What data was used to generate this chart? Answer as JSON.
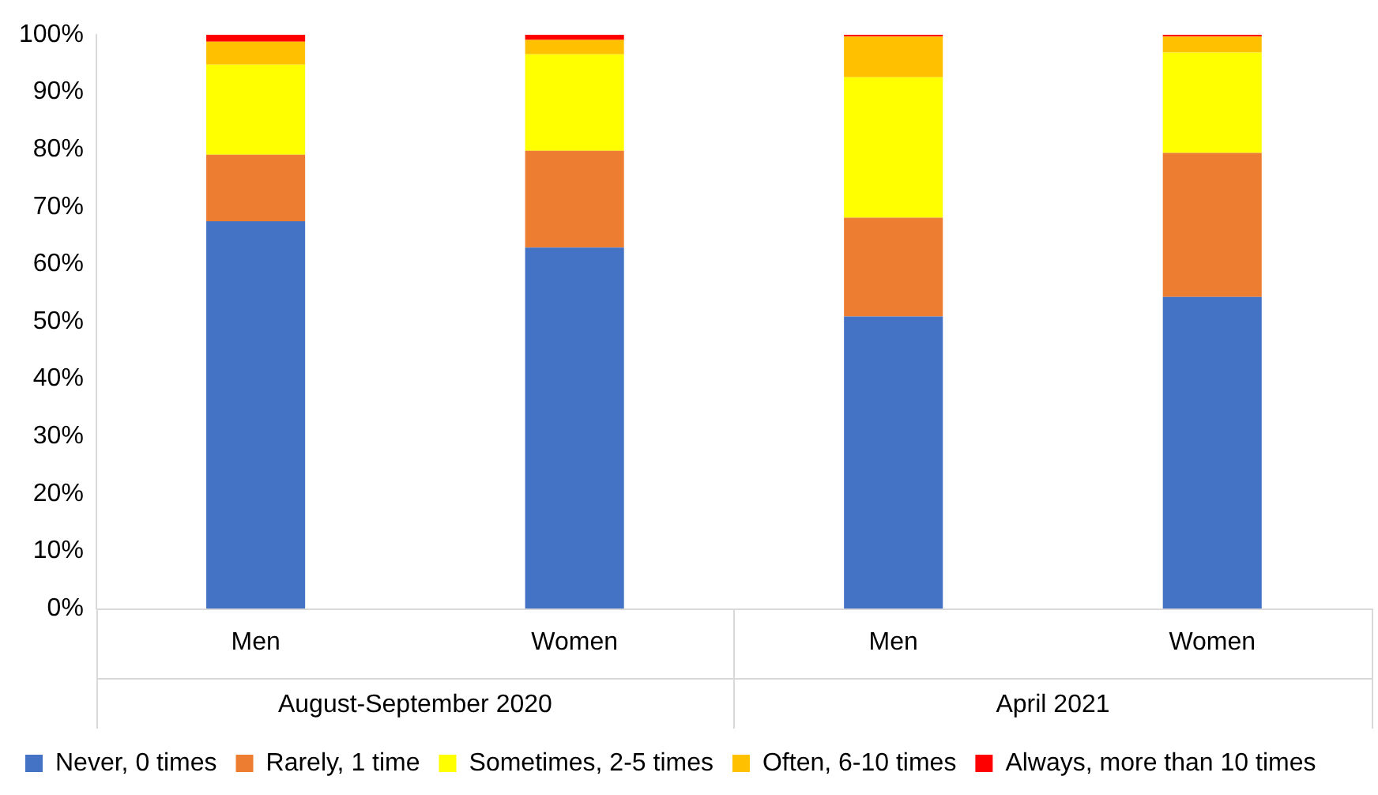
{
  "chart_data": {
    "type": "bar",
    "stacked": true,
    "categories": [
      "Men",
      "Women",
      "Men",
      "Women"
    ],
    "series": [
      {
        "name": "Never, 0 times",
        "color": "#4472c4",
        "values": [
          67.5,
          62.9,
          50.9,
          54.3
        ]
      },
      {
        "name": "Rarely, 1 time",
        "color": "#ed7d31",
        "values": [
          11.6,
          16.9,
          17.2,
          25.1
        ]
      },
      {
        "name": "Sometimes, 2-5 times",
        "color": "#ffff00",
        "values": [
          15.7,
          16.8,
          24.5,
          17.5
        ]
      },
      {
        "name": "Often, 6-10 times",
        "color": "#ffc000",
        "values": [
          4.0,
          2.5,
          7.1,
          2.8
        ]
      },
      {
        "name": "Always, more than 10 times",
        "color": "#ff0000",
        "values": [
          1.2,
          0.9,
          0.3,
          0.3
        ]
      }
    ],
    "ylim": [
      0,
      100
    ],
    "yticks": [
      {
        "value": 0,
        "label": "0%"
      },
      {
        "value": 10,
        "label": "10%"
      },
      {
        "value": 20,
        "label": "20%"
      },
      {
        "value": 30,
        "label": "30%"
      },
      {
        "value": 40,
        "label": "40%"
      },
      {
        "value": 50,
        "label": "50%"
      },
      {
        "value": 60,
        "label": "60%"
      },
      {
        "value": 70,
        "label": "70%"
      },
      {
        "value": 80,
        "label": "80%"
      },
      {
        "value": 90,
        "label": "90%"
      },
      {
        "value": 100,
        "label": "100%"
      }
    ],
    "annotations": [
      "August-September 2020",
      "April 2021"
    ],
    "grid": false,
    "legend": "bottom"
  }
}
